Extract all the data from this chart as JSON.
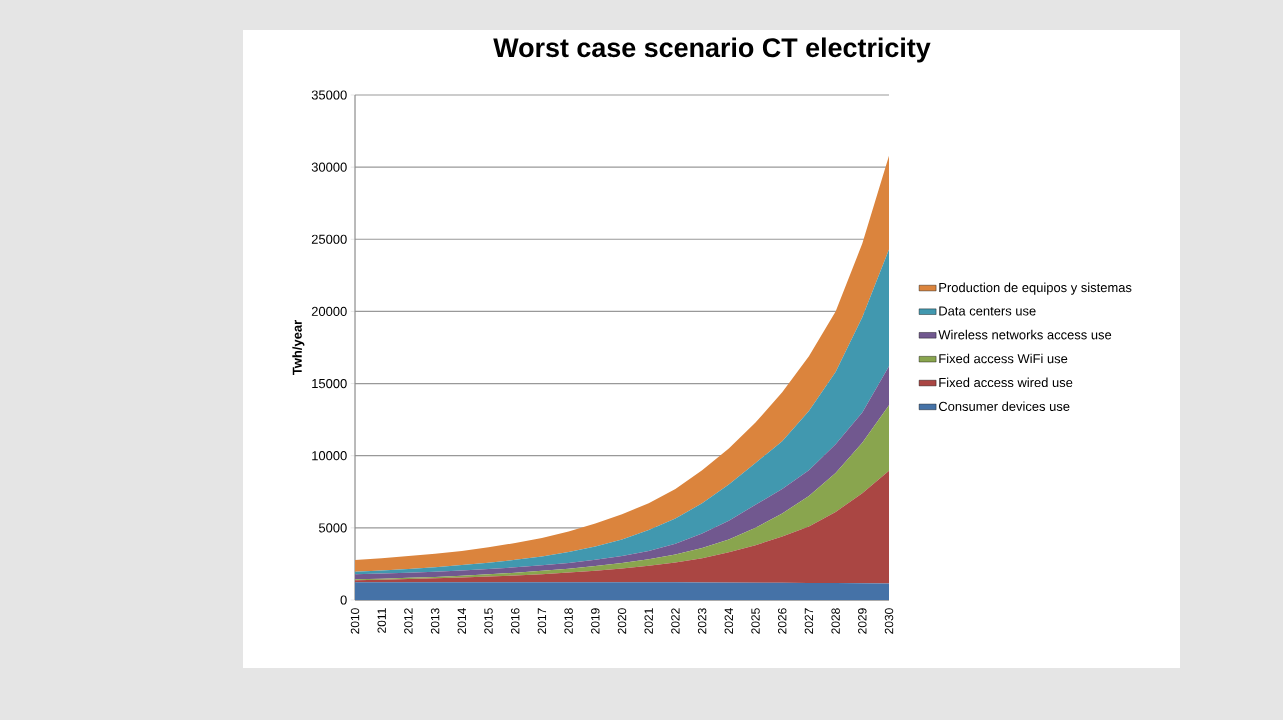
{
  "chart_data": {
    "type": "area",
    "title": "Worst case scenario CT electricity",
    "ylabel": "Twh/year",
    "stacked": true,
    "grid": "y",
    "legend": "right",
    "categories": [
      "2010",
      "2011",
      "2012",
      "2013",
      "2014",
      "2015",
      "2016",
      "2017",
      "2018",
      "2019",
      "2020",
      "2021",
      "2022",
      "2023",
      "2024",
      "2025",
      "2026",
      "2027",
      "2028",
      "2029",
      "2030"
    ],
    "ylim": [
      0,
      35000
    ],
    "yticks": [
      0,
      5000,
      10000,
      15000,
      20000,
      25000,
      30000,
      35000
    ],
    "series": [
      {
        "name": "Consumer devices use",
        "color": "#4572a7",
        "values": [
          1230,
          1230,
          1230,
          1230,
          1230,
          1230,
          1230,
          1230,
          1230,
          1230,
          1230,
          1230,
          1230,
          1220,
          1210,
          1200,
          1190,
          1180,
          1170,
          1160,
          1150
        ]
      },
      {
        "name": "Fixed access wired use",
        "color": "#aa4643",
        "values": [
          130,
          170,
          220,
          270,
          330,
          400,
          470,
          560,
          670,
          800,
          950,
          1140,
          1370,
          1680,
          2090,
          2600,
          3210,
          3920,
          4930,
          6240,
          7800
        ]
      },
      {
        "name": "Fixed access WiFi use",
        "color": "#89a54e",
        "values": [
          70,
          80,
          90,
          100,
          120,
          150,
          190,
          230,
          270,
          320,
          390,
          450,
          550,
          700,
          900,
          1200,
          1600,
          2100,
          2700,
          3500,
          4550
        ]
      },
      {
        "name": "Wireless networks access use",
        "color": "#71588f",
        "values": [
          350,
          350,
          350,
          360,
          360,
          360,
          370,
          380,
          400,
          430,
          480,
          580,
          750,
          1000,
          1300,
          1600,
          1700,
          1800,
          2000,
          2100,
          2700
        ]
      },
      {
        "name": "Data centers use",
        "color": "#4198af",
        "values": [
          180,
          220,
          260,
          310,
          380,
          440,
          520,
          620,
          750,
          920,
          1150,
          1450,
          1750,
          2100,
          2500,
          2900,
          3300,
          4100,
          5000,
          6600,
          8100
        ]
      },
      {
        "name": "Production de equipos y sistemas",
        "color": "#db843d",
        "values": [
          810,
          850,
          900,
          930,
          980,
          1070,
          1170,
          1280,
          1430,
          1600,
          1750,
          1850,
          2050,
          2300,
          2500,
          2800,
          3400,
          3800,
          4200,
          5100,
          6500
        ]
      }
    ]
  }
}
